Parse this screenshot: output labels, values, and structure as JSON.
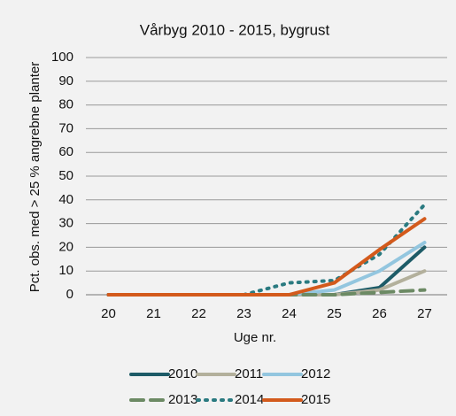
{
  "chart_data": {
    "type": "line",
    "title": "Vårbyg 2010 - 2015, bygrust",
    "x_label": "Uge nr.",
    "y_label": "Pct. obs. med > 25 % angrebne planter",
    "categories": [
      20,
      21,
      22,
      23,
      24,
      25,
      26,
      27
    ],
    "series": [
      {
        "name": "2010",
        "color": "#1d5b67",
        "dash": "solid",
        "values": [
          0,
          0,
          0,
          0,
          0,
          0,
          3,
          20
        ]
      },
      {
        "name": "2011",
        "color": "#b3b09c",
        "dash": "solid",
        "values": [
          0,
          0,
          0,
          0,
          0,
          0,
          2,
          10
        ]
      },
      {
        "name": "2012",
        "color": "#93c6df",
        "dash": "solid",
        "values": [
          0,
          0,
          0,
          0,
          0,
          2,
          10,
          22
        ]
      },
      {
        "name": "2013",
        "color": "#6c8a64",
        "dash": "dashed",
        "values": [
          0,
          0,
          0,
          0,
          0,
          0,
          1,
          2
        ]
      },
      {
        "name": "2014",
        "color": "#2a7a80",
        "dash": "dotted",
        "values": [
          0,
          0,
          0,
          0,
          5,
          6,
          17,
          38
        ]
      },
      {
        "name": "2015",
        "color": "#d35a1c",
        "dash": "solid",
        "values": [
          0,
          0,
          0,
          0,
          0,
          5,
          19,
          32
        ]
      }
    ],
    "ylim": [
      0,
      100
    ],
    "yticks": [
      0,
      10,
      20,
      30,
      40,
      50,
      60,
      70,
      80,
      90,
      100
    ],
    "grid": true,
    "legend": "bottom"
  }
}
